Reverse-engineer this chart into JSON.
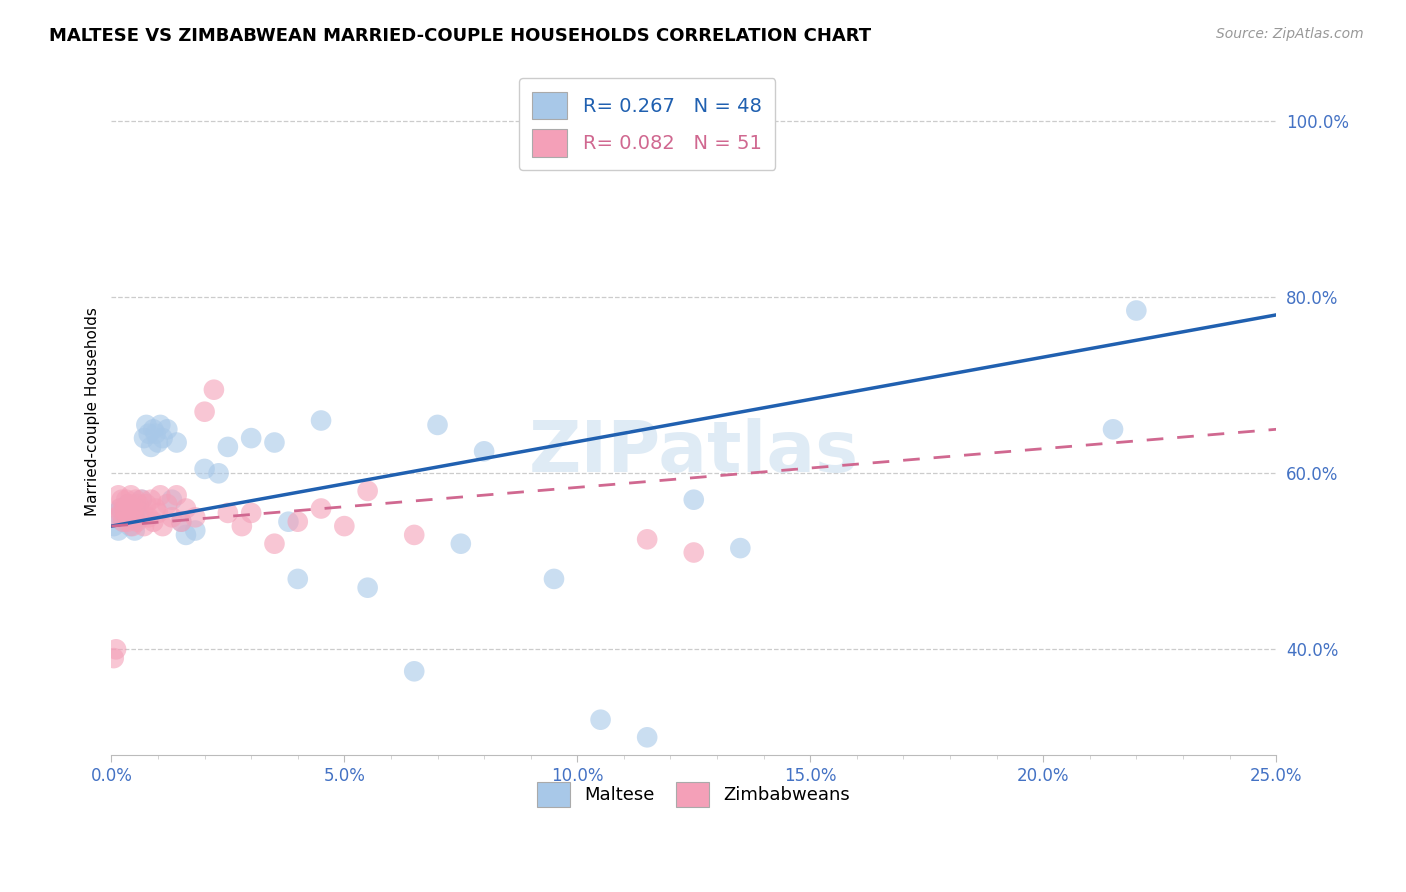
{
  "title": "MALTESE VS ZIMBABWEAN MARRIED-COUPLE HOUSEHOLDS CORRELATION CHART",
  "source": "Source: ZipAtlas.com",
  "ylabel_label": "Married-couple Households",
  "legend_maltese": "Maltese",
  "legend_zimbabweans": "Zimbabweans",
  "maltese_R_text": "R= 0.267   N = 48",
  "zimbabwean_R_text": "R= 0.082   N = 51",
  "blue_fill": "#a8c8e8",
  "pink_fill": "#f4a0b8",
  "blue_line_color": "#2060b0",
  "pink_line_color": "#d06890",
  "watermark": "ZIPatlas",
  "xlim": [
    0,
    25
  ],
  "ylim": [
    28,
    106
  ],
  "xticks": [
    0,
    5,
    10,
    15,
    20,
    25
  ],
  "yticks": [
    40,
    60,
    80,
    100
  ],
  "maltese_x": [
    0.05,
    0.1,
    0.15,
    0.2,
    0.25,
    0.3,
    0.35,
    0.4,
    0.45,
    0.5,
    0.55,
    0.6,
    0.65,
    0.7,
    0.75,
    0.8,
    0.85,
    0.9,
    0.95,
    1.0,
    1.05,
    1.1,
    1.2,
    1.3,
    1.4,
    1.5,
    1.6,
    1.8,
    2.0,
    2.3,
    2.5,
    3.0,
    3.5,
    3.8,
    4.0,
    4.5,
    5.5,
    6.5,
    7.0,
    7.5,
    8.0,
    9.5,
    10.5,
    11.5,
    12.5,
    13.5,
    21.5,
    22.0
  ],
  "maltese_y": [
    54.0,
    55.5,
    53.5,
    56.0,
    54.5,
    55.0,
    56.5,
    54.0,
    55.5,
    53.5,
    56.0,
    55.0,
    57.0,
    64.0,
    65.5,
    64.5,
    63.0,
    65.0,
    64.5,
    63.5,
    65.5,
    64.0,
    65.0,
    57.0,
    63.5,
    54.5,
    53.0,
    53.5,
    60.5,
    60.0,
    63.0,
    64.0,
    63.5,
    54.5,
    48.0,
    66.0,
    47.0,
    37.5,
    65.5,
    52.0,
    62.5,
    48.0,
    32.0,
    30.0,
    57.0,
    51.5,
    65.0,
    78.5
  ],
  "zimbabwean_x": [
    0.05,
    0.1,
    0.12,
    0.15,
    0.18,
    0.2,
    0.22,
    0.25,
    0.28,
    0.3,
    0.32,
    0.35,
    0.38,
    0.4,
    0.42,
    0.45,
    0.48,
    0.5,
    0.52,
    0.55,
    0.58,
    0.6,
    0.65,
    0.7,
    0.75,
    0.8,
    0.85,
    0.9,
    0.95,
    1.0,
    1.05,
    1.1,
    1.2,
    1.3,
    1.4,
    1.5,
    1.6,
    1.8,
    2.0,
    2.2,
    2.5,
    2.8,
    3.0,
    3.5,
    4.0,
    4.5,
    5.0,
    5.5,
    6.5,
    11.5,
    12.5
  ],
  "zimbabwean_y": [
    39.0,
    40.0,
    55.0,
    57.5,
    56.0,
    55.5,
    57.0,
    54.5,
    56.0,
    55.5,
    57.0,
    54.5,
    56.5,
    55.0,
    57.5,
    54.0,
    56.0,
    55.0,
    57.0,
    54.5,
    56.5,
    55.5,
    57.0,
    54.0,
    56.5,
    55.0,
    57.0,
    54.5,
    56.0,
    55.5,
    57.5,
    54.0,
    56.5,
    55.0,
    57.5,
    54.5,
    56.0,
    55.0,
    67.0,
    69.5,
    55.5,
    54.0,
    55.5,
    52.0,
    54.5,
    56.0,
    54.0,
    58.0,
    53.0,
    52.5,
    51.0
  ]
}
